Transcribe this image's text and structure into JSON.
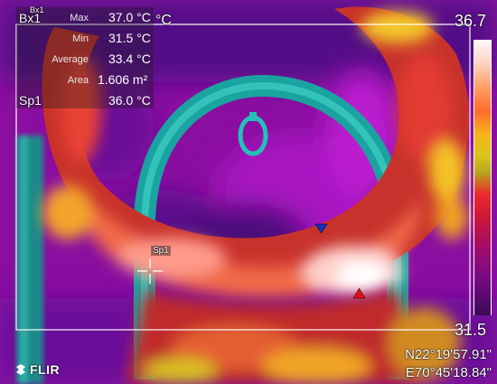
{
  "box_label": "Bx1",
  "box_label_small": "Bx1",
  "temp_unit": "°C",
  "measurements": [
    {
      "label": "Max",
      "value": "37.0 °C"
    },
    {
      "label": "Min",
      "value": "31.5 °C"
    },
    {
      "label": "Average",
      "value": "33.4 °C"
    },
    {
      "label": "Area",
      "value": "1.606 m²"
    }
  ],
  "spot": {
    "label": "Sp1",
    "value": "36.0 °C",
    "marker_label": "Sp1"
  },
  "scale": {
    "max": "36.7",
    "min": "31.5"
  },
  "gps": {
    "lat": "N22°19'57.91\"",
    "lon": "E70°45'18.84\""
  },
  "brand": "FLIR",
  "colors": {
    "box_outline": "#ffffff",
    "hot": "#ffffff",
    "cold": "#3a0a56"
  }
}
